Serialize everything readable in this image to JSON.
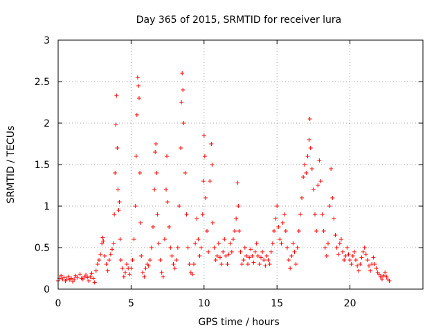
{
  "chart_data": {
    "type": "scatter",
    "title": "Day 365 of 2015, SRMTID for receiver lura",
    "xlabel": "GPS time / hours",
    "ylabel": "SRMTID / TECUs",
    "xlim": [
      0,
      25
    ],
    "ylim": [
      0,
      3
    ],
    "xticks": [
      0,
      5,
      10,
      15,
      20
    ],
    "yticks": [
      0,
      0.5,
      1,
      1.5,
      2,
      2.5,
      3
    ],
    "xtick_labels": [
      "0",
      "5",
      "10",
      "15",
      "20"
    ],
    "ytick_labels": [
      "0",
      "0.5",
      "1",
      "1.5",
      "2",
      "2.5",
      "3"
    ],
    "grid": true,
    "marker": "+",
    "series_color": "#ff0000",
    "series": [
      {
        "name": "SRMTID",
        "points": [
          [
            0.0,
            0.1
          ],
          [
            0.1,
            0.13
          ],
          [
            0.2,
            0.16
          ],
          [
            0.3,
            0.12
          ],
          [
            0.4,
            0.14
          ],
          [
            0.5,
            0.1
          ],
          [
            0.6,
            0.12
          ],
          [
            0.7,
            0.15
          ],
          [
            0.8,
            0.11
          ],
          [
            0.9,
            0.13
          ],
          [
            1.0,
            0.09
          ],
          [
            1.1,
            0.12
          ],
          [
            1.2,
            0.16
          ],
          [
            1.3,
            0.14
          ],
          [
            1.5,
            0.18
          ],
          [
            1.6,
            0.13
          ],
          [
            1.7,
            0.12
          ],
          [
            1.8,
            0.15
          ],
          [
            1.9,
            0.17
          ],
          [
            2.0,
            0.14
          ],
          [
            2.1,
            0.1
          ],
          [
            2.2,
            0.15
          ],
          [
            2.3,
            0.19
          ],
          [
            2.4,
            0.13
          ],
          [
            2.5,
            0.08
          ],
          [
            2.6,
            0.22
          ],
          [
            2.7,
            0.3
          ],
          [
            2.8,
            0.35
          ],
          [
            2.9,
            0.42
          ],
          [
            3.0,
            0.55
          ],
          [
            3.05,
            0.62
          ],
          [
            3.1,
            0.58
          ],
          [
            3.2,
            0.4
          ],
          [
            3.3,
            0.3
          ],
          [
            3.4,
            0.22
          ],
          [
            3.5,
            0.35
          ],
          [
            3.6,
            0.42
          ],
          [
            3.7,
            0.48
          ],
          [
            3.8,
            0.55
          ],
          [
            3.85,
            0.9
          ],
          [
            3.9,
            1.4
          ],
          [
            3.95,
            1.98
          ],
          [
            4.0,
            2.33
          ],
          [
            4.05,
            1.7
          ],
          [
            4.1,
            1.2
          ],
          [
            4.15,
            0.95
          ],
          [
            4.2,
            1.05
          ],
          [
            4.25,
            0.6
          ],
          [
            4.3,
            0.35
          ],
          [
            4.4,
            0.25
          ],
          [
            4.5,
            0.15
          ],
          [
            4.6,
            0.2
          ],
          [
            4.7,
            0.3
          ],
          [
            4.8,
            0.25
          ],
          [
            4.9,
            0.18
          ],
          [
            5.0,
            0.25
          ],
          [
            5.1,
            0.35
          ],
          [
            5.2,
            0.6
          ],
          [
            5.3,
            1.0
          ],
          [
            5.35,
            1.6
          ],
          [
            5.4,
            2.1
          ],
          [
            5.45,
            2.55
          ],
          [
            5.5,
            2.45
          ],
          [
            5.55,
            2.3
          ],
          [
            5.6,
            1.4
          ],
          [
            5.65,
            0.8
          ],
          [
            5.7,
            0.4
          ],
          [
            5.8,
            0.2
          ],
          [
            5.9,
            0.15
          ],
          [
            6.0,
            0.25
          ],
          [
            6.1,
            0.3
          ],
          [
            6.2,
            0.28
          ],
          [
            6.3,
            0.35
          ],
          [
            6.4,
            0.5
          ],
          [
            6.5,
            0.75
          ],
          [
            6.6,
            1.2
          ],
          [
            6.65,
            1.65
          ],
          [
            6.7,
            1.75
          ],
          [
            6.75,
            1.4
          ],
          [
            6.8,
            0.9
          ],
          [
            6.9,
            0.55
          ],
          [
            7.0,
            0.35
          ],
          [
            7.1,
            0.2
          ],
          [
            7.2,
            0.15
          ],
          [
            7.3,
            0.6
          ],
          [
            7.4,
            1.2
          ],
          [
            7.45,
            1.6
          ],
          [
            7.5,
            1.05
          ],
          [
            7.6,
            0.75
          ],
          [
            7.7,
            0.5
          ],
          [
            7.8,
            0.4
          ],
          [
            7.9,
            0.3
          ],
          [
            8.0,
            0.25
          ],
          [
            8.1,
            0.35
          ],
          [
            8.2,
            0.5
          ],
          [
            8.3,
            1.0
          ],
          [
            8.4,
            1.7
          ],
          [
            8.45,
            2.25
          ],
          [
            8.5,
            2.6
          ],
          [
            8.55,
            2.4
          ],
          [
            8.6,
            2.0
          ],
          [
            8.7,
            1.4
          ],
          [
            8.8,
            0.9
          ],
          [
            8.9,
            0.5
          ],
          [
            9.0,
            0.3
          ],
          [
            9.1,
            0.2
          ],
          [
            9.2,
            0.18
          ],
          [
            9.3,
            0.3
          ],
          [
            9.4,
            0.55
          ],
          [
            9.5,
            0.85
          ],
          [
            9.6,
            0.6
          ],
          [
            9.7,
            0.4
          ],
          [
            9.8,
            0.5
          ],
          [
            9.9,
            0.9
          ],
          [
            9.95,
            1.3
          ],
          [
            10.0,
            1.85
          ],
          [
            10.05,
            1.6
          ],
          [
            10.1,
            1.1
          ],
          [
            10.2,
            0.7
          ],
          [
            10.3,
            0.45
          ],
          [
            10.4,
            1.3
          ],
          [
            10.5,
            1.75
          ],
          [
            10.55,
            1.5
          ],
          [
            10.6,
            0.8
          ],
          [
            10.7,
            0.5
          ],
          [
            10.8,
            0.35
          ],
          [
            10.9,
            0.4
          ],
          [
            11.0,
            0.55
          ],
          [
            11.1,
            0.38
          ],
          [
            11.2,
            0.3
          ],
          [
            11.3,
            0.45
          ],
          [
            11.4,
            0.6
          ],
          [
            11.5,
            0.4
          ],
          [
            11.6,
            0.3
          ],
          [
            11.7,
            0.42
          ],
          [
            11.8,
            0.55
          ],
          [
            11.9,
            0.45
          ],
          [
            12.0,
            0.6
          ],
          [
            12.1,
            0.7
          ],
          [
            12.2,
            0.85
          ],
          [
            12.3,
            1.28
          ],
          [
            12.35,
            1.0
          ],
          [
            12.4,
            0.7
          ],
          [
            12.5,
            0.45
          ],
          [
            12.6,
            0.3
          ],
          [
            12.7,
            0.35
          ],
          [
            12.8,
            0.5
          ],
          [
            12.9,
            0.4
          ],
          [
            13.0,
            0.3
          ],
          [
            13.1,
            0.38
          ],
          [
            13.2,
            0.48
          ],
          [
            13.3,
            0.4
          ],
          [
            13.4,
            0.32
          ],
          [
            13.5,
            0.45
          ],
          [
            13.6,
            0.55
          ],
          [
            13.7,
            0.4
          ],
          [
            13.8,
            0.3
          ],
          [
            13.9,
            0.38
          ],
          [
            14.0,
            0.45
          ],
          [
            14.1,
            0.35
          ],
          [
            14.2,
            0.28
          ],
          [
            14.3,
            0.4
          ],
          [
            14.4,
            0.35
          ],
          [
            14.5,
            0.3
          ],
          [
            14.6,
            0.45
          ],
          [
            14.7,
            0.55
          ],
          [
            14.8,
            0.7
          ],
          [
            14.9,
            0.85
          ],
          [
            15.0,
            1.0
          ],
          [
            15.1,
            0.75
          ],
          [
            15.2,
            0.6
          ],
          [
            15.3,
            0.55
          ],
          [
            15.4,
            0.8
          ],
          [
            15.5,
            0.9
          ],
          [
            15.6,
            0.7
          ],
          [
            15.7,
            0.5
          ],
          [
            15.8,
            0.35
          ],
          [
            15.9,
            0.25
          ],
          [
            16.0,
            0.4
          ],
          [
            16.1,
            0.55
          ],
          [
            16.2,
            0.45
          ],
          [
            16.3,
            0.3
          ],
          [
            16.4,
            0.5
          ],
          [
            16.5,
            0.7
          ],
          [
            16.6,
            0.9
          ],
          [
            16.7,
            1.1
          ],
          [
            16.8,
            1.35
          ],
          [
            16.9,
            1.5
          ],
          [
            17.0,
            1.4
          ],
          [
            17.1,
            1.6
          ],
          [
            17.2,
            1.8
          ],
          [
            17.25,
            2.05
          ],
          [
            17.3,
            1.7
          ],
          [
            17.4,
            1.45
          ],
          [
            17.5,
            1.2
          ],
          [
            17.6,
            0.9
          ],
          [
            17.7,
            0.7
          ],
          [
            17.8,
            1.25
          ],
          [
            17.9,
            1.55
          ],
          [
            18.0,
            1.3
          ],
          [
            18.1,
            0.9
          ],
          [
            18.2,
            0.7
          ],
          [
            18.3,
            0.5
          ],
          [
            18.4,
            0.4
          ],
          [
            18.5,
            0.55
          ],
          [
            18.6,
            1.0
          ],
          [
            18.7,
            1.45
          ],
          [
            18.8,
            1.1
          ],
          [
            18.9,
            0.85
          ],
          [
            19.0,
            0.65
          ],
          [
            19.1,
            0.5
          ],
          [
            19.2,
            0.42
          ],
          [
            19.3,
            0.55
          ],
          [
            19.4,
            0.6
          ],
          [
            19.5,
            0.45
          ],
          [
            19.6,
            0.35
          ],
          [
            19.7,
            0.4
          ],
          [
            19.8,
            0.5
          ],
          [
            19.9,
            0.42
          ],
          [
            20.0,
            0.35
          ],
          [
            20.1,
            0.3
          ],
          [
            20.2,
            0.4
          ],
          [
            20.3,
            0.45
          ],
          [
            20.4,
            0.35
          ],
          [
            20.5,
            0.28
          ],
          [
            20.6,
            0.22
          ],
          [
            20.7,
            0.3
          ],
          [
            20.8,
            0.38
          ],
          [
            20.9,
            0.45
          ],
          [
            21.0,
            0.5
          ],
          [
            21.1,
            0.42
          ],
          [
            21.2,
            0.35
          ],
          [
            21.3,
            0.28
          ],
          [
            21.4,
            0.22
          ],
          [
            21.5,
            0.3
          ],
          [
            21.6,
            0.38
          ],
          [
            21.7,
            0.3
          ],
          [
            21.8,
            0.25
          ],
          [
            21.9,
            0.2
          ],
          [
            22.0,
            0.18
          ],
          [
            22.1,
            0.15
          ],
          [
            22.2,
            0.12
          ],
          [
            22.3,
            0.16
          ],
          [
            22.4,
            0.2
          ],
          [
            22.5,
            0.15
          ],
          [
            22.6,
            0.12
          ],
          [
            22.7,
            0.1
          ]
        ]
      }
    ]
  }
}
